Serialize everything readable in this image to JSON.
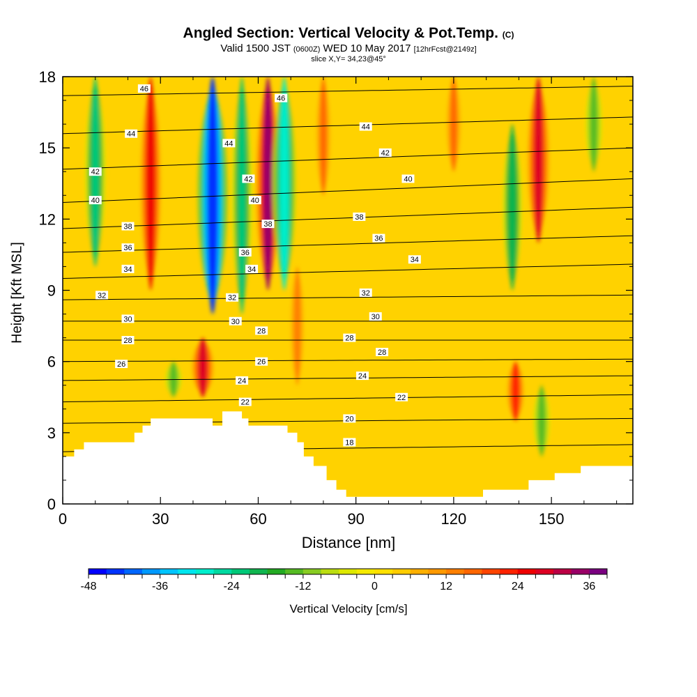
{
  "title": {
    "main": "Angled Section: Vertical Velocity & Pot.Temp.",
    "copyright": "(C)",
    "valid": "Valid 1500 JST",
    "zulu": "(0600Z)",
    "date": "WED 10 May 2017",
    "forecast": "[12hrFcst@2149z]",
    "slice": "slice X,Y= 34,23@45°"
  },
  "chart_data": {
    "type": "heatmap",
    "title": "Angled Section: Vertical Velocity & Pot.Temp.",
    "xlabel": "Distance [nm]",
    "ylabel": "Height [Kft MSL]",
    "xlim": [
      0,
      175
    ],
    "ylim": [
      0,
      18
    ],
    "x_ticks": [
      0,
      30,
      60,
      90,
      120,
      150
    ],
    "y_ticks": [
      0,
      3,
      6,
      9,
      12,
      15,
      18
    ],
    "colorbar": {
      "label": "Vertical Velocity [cm/s]",
      "ticks": [
        -48,
        -36,
        -24,
        -12,
        0,
        12,
        24,
        36
      ],
      "levels": [
        -48,
        -45,
        -42,
        -39,
        -36,
        -33,
        -30,
        -27,
        -24,
        -21,
        -18,
        -15,
        -12,
        -9,
        -6,
        -3,
        0,
        3,
        6,
        9,
        12,
        15,
        18,
        21,
        24,
        27,
        30,
        33,
        36,
        39
      ],
      "colors": [
        "#0000ff",
        "#0033ff",
        "#0066ff",
        "#0099ff",
        "#00c4ff",
        "#00e5ee",
        "#00eecc",
        "#00d9a0",
        "#00c878",
        "#10b54f",
        "#22aa22",
        "#55bb22",
        "#88cc22",
        "#bbdd11",
        "#dde800",
        "#f5ea00",
        "#ffe000",
        "#ffcc00",
        "#ffb000",
        "#ff9900",
        "#ff7f00",
        "#ff6600",
        "#ff4400",
        "#ff2200",
        "#ee0000",
        "#dd0022",
        "#bb0044",
        "#990066",
        "#7a0080"
      ]
    },
    "features": [
      {
        "kind": "updraft",
        "x": 27,
        "ytop": 18,
        "ybot": 9,
        "peak_cm_s": 24
      },
      {
        "kind": "downdraft",
        "x": 46,
        "ytop": 18,
        "ybot": 8,
        "peak_cm_s": -45
      },
      {
        "kind": "downdraft",
        "x": 55,
        "ytop": 18,
        "ybot": 8,
        "peak_cm_s": -24
      },
      {
        "kind": "updraft",
        "x": 63,
        "ytop": 18,
        "ybot": 9,
        "peak_cm_s": 33
      },
      {
        "kind": "downdraft",
        "x": 68,
        "ytop": 18,
        "ybot": 9,
        "peak_cm_s": -30
      },
      {
        "kind": "updraft",
        "x": 72,
        "ytop": 10,
        "ybot": 5,
        "peak_cm_s": 12
      },
      {
        "kind": "updraft",
        "x": 43,
        "ytop": 7,
        "ybot": 4.5,
        "peak_cm_s": 27
      },
      {
        "kind": "downdraft",
        "x": 10,
        "ytop": 18,
        "ybot": 10,
        "peak_cm_s": -24
      },
      {
        "kind": "downdraft",
        "x": 34,
        "ytop": 6,
        "ybot": 4.5,
        "peak_cm_s": -15
      },
      {
        "kind": "updraft",
        "x": 80,
        "ytop": 18,
        "ybot": 13,
        "peak_cm_s": 15
      },
      {
        "kind": "updraft",
        "x": 120,
        "ytop": 18,
        "ybot": 14,
        "peak_cm_s": 15
      },
      {
        "kind": "downdraft",
        "x": 138,
        "ytop": 16,
        "ybot": 9,
        "peak_cm_s": -21
      },
      {
        "kind": "updraft",
        "x": 146,
        "ytop": 18,
        "ybot": 11,
        "peak_cm_s": 27
      },
      {
        "kind": "updraft",
        "x": 139,
        "ytop": 6,
        "ybot": 3.5,
        "peak_cm_s": 21
      },
      {
        "kind": "downdraft",
        "x": 147,
        "ytop": 5,
        "ybot": 2,
        "peak_cm_s": -15
      },
      {
        "kind": "downdraft",
        "x": 163,
        "ytop": 18,
        "ybot": 14,
        "peak_cm_s": -15
      }
    ],
    "theta_contours": [
      {
        "value": 18,
        "left": 2.2,
        "right": 2.5
      },
      {
        "value": 20,
        "left": 3.4,
        "right": 3.6
      },
      {
        "value": 22,
        "left": 4.3,
        "right": 4.6
      },
      {
        "value": 24,
        "left": 5.2,
        "right": 5.4
      },
      {
        "value": 26,
        "left": 6.0,
        "right": 6.1
      },
      {
        "value": 28,
        "left": 6.9,
        "right": 6.9
      },
      {
        "value": 30,
        "left": 7.7,
        "right": 7.7
      },
      {
        "value": 32,
        "left": 8.6,
        "right": 8.8
      },
      {
        "value": 34,
        "left": 9.5,
        "right": 10.1
      },
      {
        "value": 36,
        "left": 10.6,
        "right": 11.3
      },
      {
        "value": 38,
        "left": 11.6,
        "right": 12.5
      },
      {
        "value": 40,
        "left": 12.7,
        "right": 13.7
      },
      {
        "value": 42,
        "left": 14.1,
        "right": 15.0
      },
      {
        "value": 44,
        "left": 15.6,
        "right": 16.3
      },
      {
        "value": 46,
        "left": 17.2,
        "right": 17.6
      }
    ],
    "contour_labels": [
      {
        "text": "46",
        "x": 25,
        "y": 17.5
      },
      {
        "text": "46",
        "x": 67,
        "y": 17.1
      },
      {
        "text": "44",
        "x": 21,
        "y": 15.6
      },
      {
        "text": "44",
        "x": 51,
        "y": 15.2
      },
      {
        "text": "44",
        "x": 93,
        "y": 15.9
      },
      {
        "text": "42",
        "x": 10,
        "y": 14.0
      },
      {
        "text": "42",
        "x": 57,
        "y": 13.7
      },
      {
        "text": "42",
        "x": 99,
        "y": 14.8
      },
      {
        "text": "40",
        "x": 10,
        "y": 12.8
      },
      {
        "text": "40",
        "x": 59,
        "y": 12.8
      },
      {
        "text": "40",
        "x": 106,
        "y": 13.7
      },
      {
        "text": "38",
        "x": 20,
        "y": 11.7
      },
      {
        "text": "38",
        "x": 63,
        "y": 11.8
      },
      {
        "text": "38",
        "x": 91,
        "y": 12.1
      },
      {
        "text": "36",
        "x": 20,
        "y": 10.8
      },
      {
        "text": "36",
        "x": 56,
        "y": 10.6
      },
      {
        "text": "36",
        "x": 97,
        "y": 11.2
      },
      {
        "text": "34",
        "x": 20,
        "y": 9.9
      },
      {
        "text": "34",
        "x": 58,
        "y": 9.9
      },
      {
        "text": "34",
        "x": 108,
        "y": 10.3
      },
      {
        "text": "32",
        "x": 12,
        "y": 8.8
      },
      {
        "text": "32",
        "x": 52,
        "y": 8.7
      },
      {
        "text": "32",
        "x": 93,
        "y": 8.9
      },
      {
        "text": "30",
        "x": 20,
        "y": 7.8
      },
      {
        "text": "30",
        "x": 53,
        "y": 7.7
      },
      {
        "text": "30",
        "x": 96,
        "y": 7.9
      },
      {
        "text": "28",
        "x": 20,
        "y": 6.9
      },
      {
        "text": "28",
        "x": 61,
        "y": 7.3
      },
      {
        "text": "28",
        "x": 88,
        "y": 7.0
      },
      {
        "text": "28",
        "x": 98,
        "y": 6.4
      },
      {
        "text": "26",
        "x": 18,
        "y": 5.9
      },
      {
        "text": "26",
        "x": 61,
        "y": 6.0
      },
      {
        "text": "24",
        "x": 55,
        "y": 5.2
      },
      {
        "text": "24",
        "x": 92,
        "y": 5.4
      },
      {
        "text": "22",
        "x": 56,
        "y": 4.3
      },
      {
        "text": "22",
        "x": 104,
        "y": 4.5
      },
      {
        "text": "20",
        "x": 88,
        "y": 3.6
      },
      {
        "text": "18",
        "x": 88,
        "y": 2.6
      }
    ],
    "terrain": [
      [
        0,
        2
      ],
      [
        3.5,
        2
      ],
      [
        3.5,
        2.3
      ],
      [
        6.5,
        2.3
      ],
      [
        6.5,
        2.6
      ],
      [
        22,
        2.6
      ],
      [
        22,
        3
      ],
      [
        24.5,
        3
      ],
      [
        24.5,
        3.3
      ],
      [
        27,
        3.3
      ],
      [
        27,
        3.6
      ],
      [
        46,
        3.6
      ],
      [
        46,
        3.3
      ],
      [
        49,
        3.3
      ],
      [
        49,
        3.9
      ],
      [
        55,
        3.9
      ],
      [
        55,
        3.6
      ],
      [
        57,
        3.6
      ],
      [
        57,
        3.3
      ],
      [
        69,
        3.3
      ],
      [
        69,
        3
      ],
      [
        72,
        3
      ],
      [
        72,
        2.6
      ],
      [
        74,
        2.6
      ],
      [
        74,
        2
      ],
      [
        77,
        2
      ],
      [
        77,
        1.6
      ],
      [
        81,
        1.6
      ],
      [
        81,
        1
      ],
      [
        84,
        1
      ],
      [
        84,
        0.6
      ],
      [
        87,
        0.6
      ],
      [
        87,
        0.3
      ],
      [
        129,
        0.3
      ],
      [
        129,
        0.6
      ],
      [
        143,
        0.6
      ],
      [
        143,
        1
      ],
      [
        151,
        1
      ],
      [
        151,
        1.3
      ],
      [
        159,
        1.3
      ],
      [
        159,
        1.6
      ],
      [
        175,
        1.6
      ]
    ]
  }
}
